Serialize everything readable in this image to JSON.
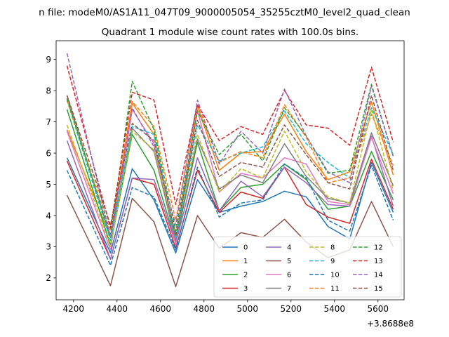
{
  "chart_data": {
    "type": "line",
    "suptitle": "n file: modeM0/AS1A11_047T09_9000005054_35255cztM0_level2_quad_clean",
    "title": "Quadrant 1 module wise count rates with 100.0s bins.",
    "xlabel": "",
    "ylabel": "",
    "x_offset_label": "+3.8688e8",
    "xlim": [
      4120,
      5720
    ],
    "ylim": [
      1.3,
      9.6
    ],
    "x_ticks": [
      4200,
      4400,
      4600,
      4800,
      5000,
      5200,
      5400,
      5600
    ],
    "y_ticks": [
      2,
      3,
      4,
      5,
      6,
      7,
      8,
      9
    ],
    "grid": false,
    "legend_position": "lower right",
    "legend_columns": 4,
    "x": [
      4170,
      4370,
      4470,
      4570,
      4670,
      4770,
      4870,
      4970,
      5070,
      5170,
      5270,
      5370,
      5470,
      5570,
      5670
    ],
    "series": [
      {
        "name": "0",
        "color": "#1f77b4",
        "dash": "solid",
        "values": [
          5.85,
          2.8,
          5.5,
          4.5,
          2.8,
          5.15,
          4.1,
          4.3,
          4.45,
          4.78,
          4.6,
          3.65,
          3.25,
          5.7,
          4.1
        ]
      },
      {
        "name": "1",
        "color": "#ff7f0e",
        "dash": "solid",
        "values": [
          6.75,
          3.3,
          7.6,
          6.6,
          3.2,
          7.5,
          5.45,
          6.0,
          6.05,
          7.25,
          6.05,
          5.15,
          5.4,
          7.65,
          5.3
        ]
      },
      {
        "name": "2",
        "color": "#2ca02c",
        "dash": "solid",
        "values": [
          7.4,
          3.05,
          6.6,
          5.45,
          3.15,
          6.35,
          4.15,
          4.9,
          5.0,
          5.65,
          5.15,
          4.2,
          4.3,
          6.05,
          4.5
        ]
      },
      {
        "name": "3",
        "color": "#d62728",
        "dash": "solid",
        "values": [
          5.75,
          2.6,
          5.2,
          5.0,
          2.95,
          5.45,
          4.1,
          4.75,
          4.55,
          5.55,
          4.35,
          3.95,
          3.75,
          5.8,
          4.2
        ]
      },
      {
        "name": "4",
        "color": "#9467bd",
        "dash": "solid",
        "values": [
          6.4,
          2.6,
          5.2,
          5.15,
          3.1,
          5.85,
          4.15,
          5.1,
          4.6,
          5.55,
          5.05,
          4.35,
          4.3,
          6.55,
          4.3
        ]
      },
      {
        "name": "5",
        "color": "#8c564b",
        "dash": "solid",
        "values": [
          4.65,
          1.75,
          4.55,
          3.8,
          1.72,
          4.0,
          2.95,
          3.45,
          3.3,
          3.88,
          3.15,
          2.65,
          2.9,
          4.45,
          3.0
        ]
      },
      {
        "name": "6",
        "color": "#e377c2",
        "dash": "solid",
        "values": [
          6.7,
          2.9,
          7.4,
          6.3,
          3.05,
          7.35,
          4.75,
          5.35,
          5.2,
          5.85,
          5.65,
          4.45,
          4.35,
          6.5,
          4.7
        ]
      },
      {
        "name": "7",
        "color": "#7f7f7f",
        "dash": "solid",
        "values": [
          7.85,
          3.3,
          6.8,
          6.05,
          3.2,
          6.45,
          4.85,
          5.3,
          5.05,
          6.3,
          5.25,
          4.55,
          4.4,
          6.65,
          4.95
        ]
      },
      {
        "name": "8",
        "color": "#bcbd22",
        "dash": "dashed",
        "values": [
          6.9,
          3.0,
          6.7,
          6.1,
          3.4,
          6.6,
          4.75,
          5.5,
          5.2,
          6.7,
          5.4,
          4.6,
          4.4,
          7.4,
          4.8
        ]
      },
      {
        "name": "9",
        "color": "#17becf",
        "dash": "dashed",
        "values": [
          7.7,
          3.2,
          6.85,
          6.6,
          3.25,
          6.9,
          5.75,
          6.0,
          6.2,
          7.35,
          6.3,
          5.7,
          5.2,
          7.45,
          5.95
        ]
      },
      {
        "name": "10",
        "color": "#1f77b4",
        "dash": "dashed",
        "values": [
          5.45,
          2.4,
          4.9,
          4.6,
          2.9,
          5.55,
          3.95,
          4.4,
          4.5,
          5.65,
          5.2,
          3.85,
          3.5,
          5.6,
          3.85
        ]
      },
      {
        "name": "11",
        "color": "#ff7f0e",
        "dash": "dashed",
        "values": [
          7.7,
          3.5,
          7.65,
          6.85,
          3.85,
          7.55,
          5.7,
          6.05,
          5.85,
          7.55,
          6.5,
          5.05,
          5.2,
          7.25,
          5.6
        ]
      },
      {
        "name": "12",
        "color": "#2ca02c",
        "dash": "dashed",
        "values": [
          7.75,
          3.35,
          8.3,
          6.75,
          3.5,
          7.35,
          5.95,
          6.6,
          5.75,
          7.45,
          6.55,
          5.35,
          5.45,
          8.2,
          5.9
        ]
      },
      {
        "name": "13",
        "color": "#d62728",
        "dash": "dashed",
        "values": [
          8.8,
          3.6,
          7.95,
          7.7,
          4.35,
          7.55,
          6.4,
          6.85,
          6.6,
          8.0,
          6.9,
          6.8,
          6.25,
          8.75,
          6.35
        ]
      },
      {
        "name": "14",
        "color": "#9467bd",
        "dash": "dashed",
        "values": [
          9.2,
          3.3,
          7.45,
          6.2,
          3.7,
          7.7,
          5.65,
          6.7,
          6.0,
          8.05,
          6.55,
          5.4,
          5.05,
          8.15,
          5.9
        ]
      },
      {
        "name": "15",
        "color": "#8c564b",
        "dash": "dashed",
        "values": [
          7.85,
          3.7,
          6.95,
          6.4,
          3.35,
          7.05,
          5.25,
          5.7,
          5.55,
          6.9,
          5.95,
          5.05,
          4.85,
          7.85,
          5.45
        ]
      }
    ]
  }
}
